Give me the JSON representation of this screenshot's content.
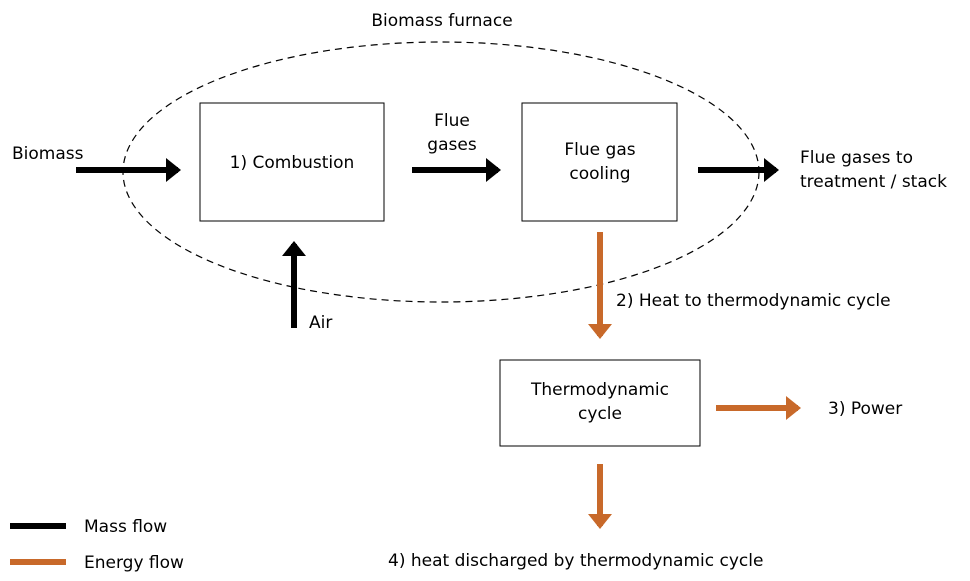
{
  "title": "Biomass furnace",
  "nodes": [
    {
      "label": "1) Combustion"
    },
    {
      "label": "Flue gas cooling"
    },
    {
      "label": "Thermodynamic cycle"
    }
  ],
  "flows": [
    {
      "label": "Biomass"
    },
    {
      "label": "Air"
    },
    {
      "label": "Flue gases"
    },
    {
      "label": "Flue gases to treatment / stack"
    },
    {
      "label": "2) Heat to thermodynamic cycle"
    },
    {
      "label": "3) Power"
    },
    {
      "label": "4) heat discharged by thermodynamic cycle"
    }
  ],
  "legend": [
    {
      "label": "Mass flow",
      "color": "#000000"
    },
    {
      "label": "Energy flow",
      "color": "#c8692a"
    }
  ]
}
